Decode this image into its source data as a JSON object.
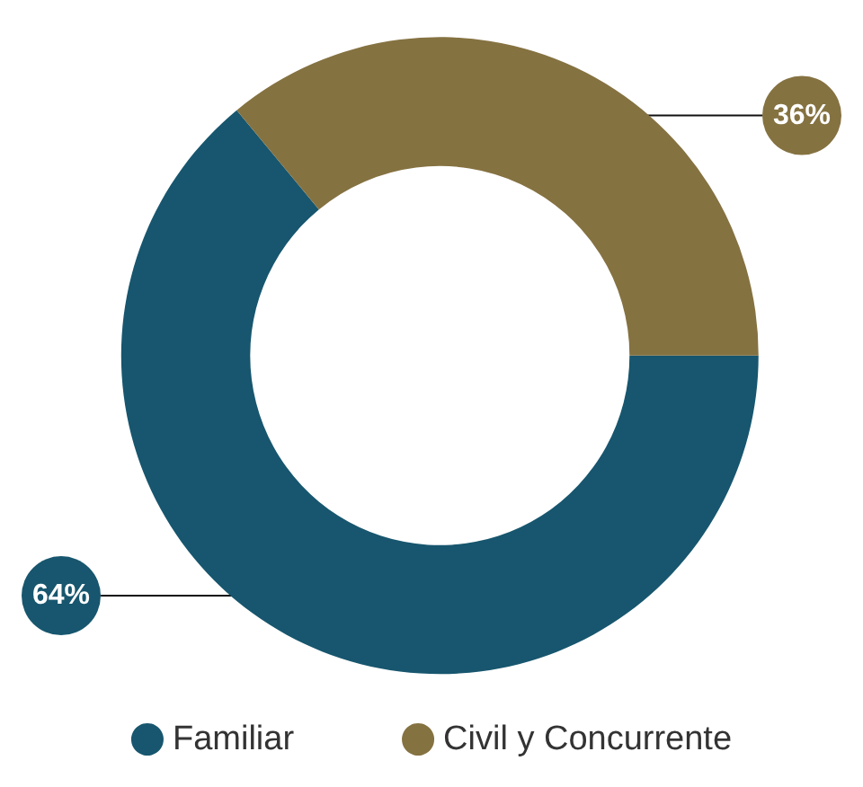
{
  "chart_data": {
    "type": "donut",
    "categories": [
      "Familiar",
      "Civil y Concurrente"
    ],
    "values": [
      64,
      36
    ],
    "value_labels": [
      "64%",
      "36%"
    ],
    "colors": [
      "#17566e",
      "#857241"
    ],
    "legend": "bottom"
  }
}
